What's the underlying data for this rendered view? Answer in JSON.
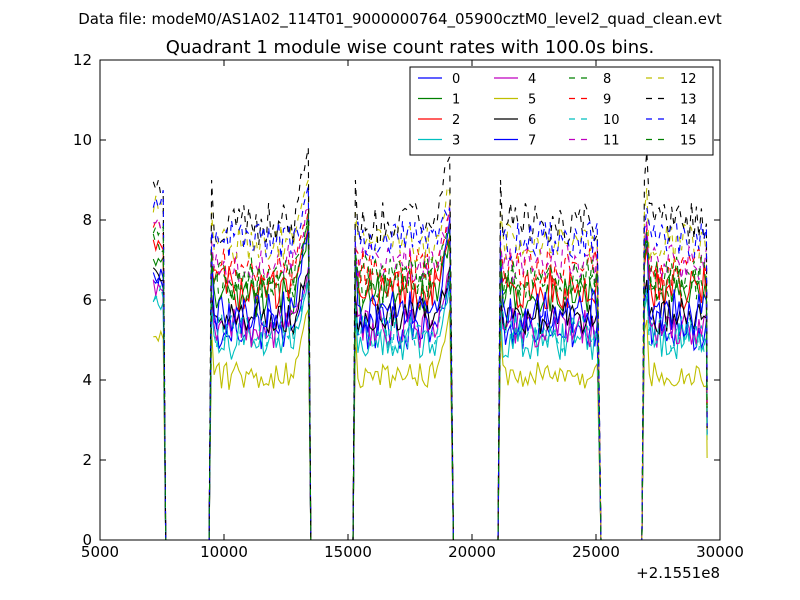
{
  "figure": {
    "suptitle": "Data file: modeM0/AS1A02_114T01_9000000764_05900cztM0_level2_quad_clean.evt"
  },
  "chart_data": {
    "type": "line",
    "title": "Quadrant 1 module wise count rates with 100.0s bins.",
    "xlabel": "",
    "ylabel": "",
    "x_offset_label": "+2.1551e8",
    "xlim": [
      5000,
      30000
    ],
    "ylim": [
      0,
      12
    ],
    "x_ticks": [
      5000,
      10000,
      15000,
      20000,
      25000,
      30000
    ],
    "y_ticks": [
      0,
      2,
      4,
      6,
      8,
      10,
      12
    ],
    "x_tick_labels": [
      "5000",
      "10000",
      "15000",
      "20000",
      "25000",
      "30000"
    ],
    "y_tick_labels": [
      "0",
      "2",
      "4",
      "6",
      "8",
      "10",
      "12"
    ],
    "legend_position": "top-right",
    "segments": [
      {
        "start": 7150,
        "end": 7550
      },
      {
        "start": 9500,
        "end": 13400
      },
      {
        "start": 15300,
        "end": 19150
      },
      {
        "start": 21150,
        "end": 25100
      },
      {
        "start": 26950,
        "end": 29450
      }
    ],
    "series": [
      {
        "name": "0",
        "color": "#0000ff",
        "style": "solid",
        "level": 5.3,
        "noise": 0.55,
        "peak": 6.6
      },
      {
        "name": "1",
        "color": "#008000",
        "style": "solid",
        "level": 6.1,
        "noise": 0.55,
        "peak": 7.7
      },
      {
        "name": "2",
        "color": "#ff0000",
        "style": "solid",
        "level": 6.3,
        "noise": 0.55,
        "peak": 7.6
      },
      {
        "name": "3",
        "color": "#00bfbf",
        "style": "solid",
        "level": 5.0,
        "noise": 0.5,
        "peak": 6.4
      },
      {
        "name": "4",
        "color": "#bf00bf",
        "style": "solid",
        "level": 5.3,
        "noise": 0.5,
        "peak": 6.8
      },
      {
        "name": "5",
        "color": "#bfbf00",
        "style": "solid",
        "level": 4.1,
        "noise": 0.35,
        "peak": 5.8
      },
      {
        "name": "6",
        "color": "#000000",
        "style": "solid",
        "level": 5.6,
        "noise": 0.45,
        "peak": 6.8
      },
      {
        "name": "7",
        "color": "#0000ff",
        "style": "solid",
        "level": 5.7,
        "noise": 0.6,
        "peak": 8.0
      },
      {
        "name": "8",
        "color": "#008000",
        "style": "dashed",
        "level": 6.4,
        "noise": 0.5,
        "peak": 7.8
      },
      {
        "name": "9",
        "color": "#ff0000",
        "style": "dashed",
        "level": 6.8,
        "noise": 0.5,
        "peak": 8.1
      },
      {
        "name": "10",
        "color": "#00bfbf",
        "style": "dashed",
        "level": 5.2,
        "noise": 0.5,
        "peak": 6.6
      },
      {
        "name": "11",
        "color": "#bf00bf",
        "style": "dashed",
        "level": 6.9,
        "noise": 0.5,
        "peak": 8.3
      },
      {
        "name": "12",
        "color": "#bfbf00",
        "style": "dashed",
        "level": 7.4,
        "noise": 0.5,
        "peak": 9.1
      },
      {
        "name": "13",
        "color": "#000000",
        "style": "dashed",
        "level": 7.9,
        "noise": 0.55,
        "peak": 10.0
      },
      {
        "name": "14",
        "color": "#0000ff",
        "style": "dashed",
        "level": 7.5,
        "noise": 0.5,
        "peak": 8.6
      },
      {
        "name": "15",
        "color": "#008000",
        "style": "dashed",
        "level": 6.6,
        "noise": 0.5,
        "peak": 8.0
      }
    ]
  }
}
